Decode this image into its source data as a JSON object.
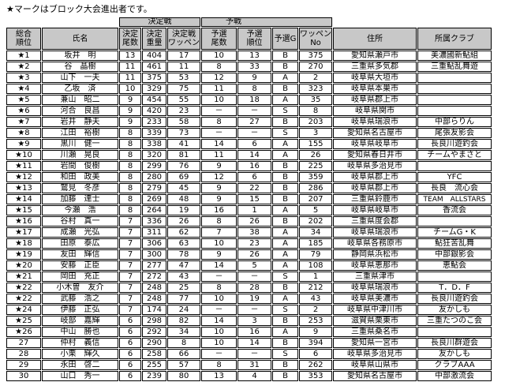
{
  "title": "★マークはブロック大会進出者です。",
  "groups": {
    "final": "決定戦",
    "prelim": "予戦"
  },
  "headers": [
    "総合\n順位",
    "氏名",
    "決定\n尾数",
    "決定\n重量",
    "決定戦\nワッペン",
    "予選\n尾数",
    "予選\n順位",
    "予選G",
    "ワッペン\nNo",
    "住所",
    "所属クラブ"
  ],
  "rows": [
    [
      "★1",
      "坂井　明",
      "13",
      "404",
      "17",
      "10",
      "13",
      "B",
      "375",
      "愛知県瀬戸市",
      "美濃國新鮎組"
    ],
    [
      "★2",
      "谷　晶樹",
      "11",
      "461",
      "11",
      "8",
      "33",
      "B",
      "270",
      "三重県多気郡",
      "三重鮎乱舞遊"
    ],
    [
      "★3",
      "山下　一夫",
      "11",
      "375",
      "53",
      "12",
      "9",
      "A",
      "2",
      "岐阜県大垣市",
      ""
    ],
    [
      "★4",
      "乙坂　済",
      "10",
      "329",
      "75",
      "11",
      "8",
      "B",
      "323",
      "岐阜県本巣市",
      ""
    ],
    [
      "★5",
      "兼山　昭二",
      "9",
      "454",
      "55",
      "10",
      "18",
      "A",
      "35",
      "岐阜県郡上市",
      ""
    ],
    [
      "★6",
      "河合　良昌",
      "9",
      "420",
      "23",
      "－",
      "－",
      "S",
      "8",
      "岐阜県関市",
      ""
    ],
    [
      "★7",
      "岩井　静夫",
      "9",
      "233",
      "58",
      "8",
      "27",
      "B",
      "203",
      "岐阜県瑞浪市",
      "中部らりん"
    ],
    [
      "★8",
      "江田　裕樹",
      "8",
      "339",
      "73",
      "－",
      "－",
      "S",
      "3",
      "愛知県名古屋市",
      "尾張友影会"
    ],
    [
      "★9",
      "黒川　健一",
      "8",
      "338",
      "41",
      "14",
      "6",
      "A",
      "155",
      "岐阜県岐阜市",
      "長良川遊釣会"
    ],
    [
      "★10",
      "川瀬　晃良",
      "8",
      "320",
      "81",
      "11",
      "14",
      "A",
      "26",
      "愛知県春日井市",
      "チームやまさと"
    ],
    [
      "★11",
      "岩間　俊樹",
      "8",
      "299",
      "76",
      "9",
      "16",
      "B",
      "225",
      "岐阜県多治見市",
      ""
    ],
    [
      "★12",
      "和田　政美",
      "8",
      "280",
      "69",
      "12",
      "6",
      "B",
      "359",
      "岐阜県郡上市",
      "YFC"
    ],
    [
      "★13",
      "鷲見　冬彦",
      "8",
      "279",
      "45",
      "9",
      "22",
      "B",
      "286",
      "岐阜県郡上市",
      "長良　流心会"
    ],
    [
      "★14",
      "加藤　達士",
      "8",
      "269",
      "48",
      "9",
      "15",
      "B",
      "207",
      "三重県鈴鹿市",
      "TEAM　ALLSTARS"
    ],
    [
      "★15",
      "今瀬　浩",
      "8",
      "264",
      "19",
      "16",
      "1",
      "A",
      "5",
      "岐阜県岐阜市",
      "香流会"
    ],
    [
      "★16",
      "谷村　真一",
      "7",
      "336",
      "26",
      "8",
      "26",
      "B",
      "202",
      "三重県度会郡",
      ""
    ],
    [
      "★17",
      "成瀬　光弘",
      "7",
      "311",
      "62",
      "7",
      "38",
      "A",
      "34",
      "岐阜県瑞浪市",
      "チームG・K"
    ],
    [
      "★18",
      "田原　泰広",
      "7",
      "306",
      "63",
      "10",
      "23",
      "A",
      "185",
      "岐阜県各務原市",
      "鮎狂苦乱舞"
    ],
    [
      "★19",
      "友田　輝信",
      "7",
      "300",
      "78",
      "9",
      "26",
      "A",
      "79",
      "静岡県浜松市",
      "中部銀影会"
    ],
    [
      "★20",
      "安藤　正臣",
      "7",
      "277",
      "47",
      "14",
      "5",
      "A",
      "108",
      "岐阜県恵那市",
      "恵鮎会"
    ],
    [
      "★21",
      "岡田　充正",
      "7",
      "272",
      "43",
      "－",
      "－",
      "S",
      "1",
      "三重県津市",
      ""
    ],
    [
      "★22",
      "小木曽　友介",
      "7",
      "248",
      "25",
      "8",
      "28",
      "B",
      "212",
      "岐阜県瑞浪市",
      "T．D．F"
    ],
    [
      "★22",
      "武藤　浩之",
      "7",
      "248",
      "77",
      "10",
      "19",
      "A",
      "43",
      "岐阜県美濃市",
      "長良川遊釣会"
    ],
    [
      "★24",
      "伊藤　正弘",
      "7",
      "174",
      "24",
      "－",
      "－",
      "S",
      "2",
      "岐阜県中津川市",
      "友かしも"
    ],
    [
      "★25",
      "岐部　嘉輝",
      "6",
      "298",
      "82",
      "14",
      "3",
      "B",
      "253",
      "滋賀県栗東市",
      "三重たつのこ会"
    ],
    [
      "★26",
      "中山　勝也",
      "6",
      "292",
      "34",
      "10",
      "16",
      "A",
      "9",
      "三重県桑名市",
      ""
    ],
    [
      "27",
      "仲村　義信",
      "6",
      "290",
      "8",
      "10",
      "14",
      "B",
      "394",
      "愛知県一宮市",
      "長良川群遊会"
    ],
    [
      "28",
      "小栗　輝久",
      "6",
      "258",
      "66",
      "－",
      "－",
      "S",
      "6",
      "岐阜県多治見市",
      "友かしも"
    ],
    [
      "29",
      "永田　啓二",
      "6",
      "255",
      "57",
      "8",
      "31",
      "B",
      "262",
      "岐阜県山県市",
      "クラブAAA"
    ],
    [
      "30",
      "山口　秀一",
      "6",
      "239",
      "80",
      "13",
      "4",
      "B",
      "353",
      "愛知県名古屋市",
      "中部激流会"
    ]
  ]
}
